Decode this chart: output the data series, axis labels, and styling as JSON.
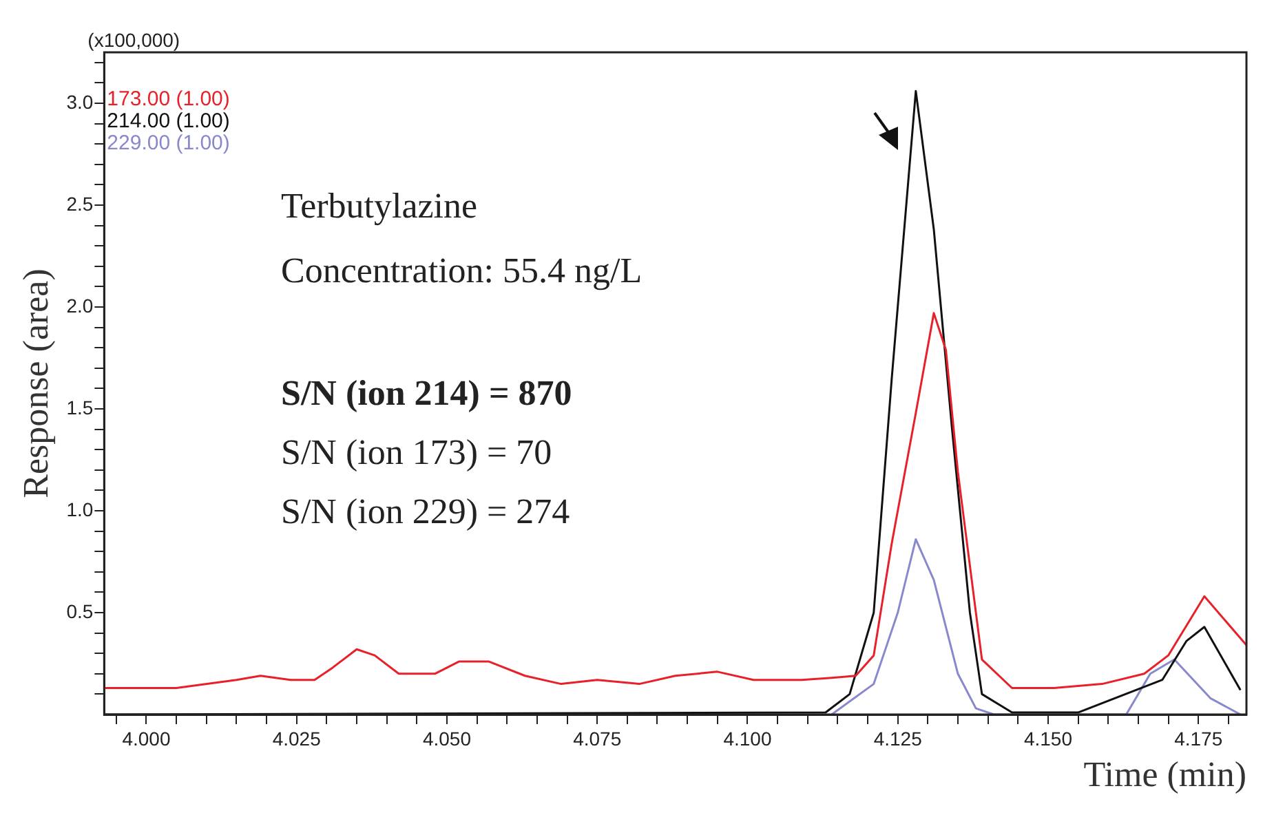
{
  "chart_data": {
    "type": "line",
    "xlabel": "Time (min)",
    "ylabel": "Response (area)",
    "annotations": [
      "(x100,000)",
      "Terbutylazine",
      "Concentration: 55.4 ng/L",
      "S/N (ion 214) = 870",
      "S/N (ion 173) = 70",
      "S/N (ion 229) = 274"
    ],
    "xlim": [
      3.993,
      4.183
    ],
    "ylim": [
      0,
      3.25
    ],
    "xticks": [
      {
        "value": 3.995,
        "label": null
      },
      {
        "value": 4,
        "label": "4.000"
      },
      {
        "value": 4.005,
        "label": null
      },
      {
        "value": 4.01,
        "label": null
      },
      {
        "value": 4.015,
        "label": null
      },
      {
        "value": 4.02,
        "label": null
      },
      {
        "value": 4.025,
        "label": "4.025"
      },
      {
        "value": 4.03,
        "label": null
      },
      {
        "value": 4.035,
        "label": null
      },
      {
        "value": 4.04,
        "label": null
      },
      {
        "value": 4.045,
        "label": null
      },
      {
        "value": 4.05,
        "label": "4.050"
      },
      {
        "value": 4.055,
        "label": null
      },
      {
        "value": 4.06,
        "label": null
      },
      {
        "value": 4.065,
        "label": null
      },
      {
        "value": 4.07,
        "label": null
      },
      {
        "value": 4.075,
        "label": "4.075"
      },
      {
        "value": 4.08,
        "label": null
      },
      {
        "value": 4.085,
        "label": null
      },
      {
        "value": 4.09,
        "label": null
      },
      {
        "value": 4.095,
        "label": null
      },
      {
        "value": 4.1,
        "label": "4.100"
      },
      {
        "value": 4.105,
        "label": null
      },
      {
        "value": 4.11,
        "label": null
      },
      {
        "value": 4.115,
        "label": null
      },
      {
        "value": 4.12,
        "label": null
      },
      {
        "value": 4.125,
        "label": "4.125"
      },
      {
        "value": 4.13,
        "label": null
      },
      {
        "value": 4.135,
        "label": null
      },
      {
        "value": 4.14,
        "label": null
      },
      {
        "value": 4.145,
        "label": null
      },
      {
        "value": 4.15,
        "label": "4.150"
      },
      {
        "value": 4.155,
        "label": null
      },
      {
        "value": 4.16,
        "label": null
      },
      {
        "value": 4.165,
        "label": null
      },
      {
        "value": 4.17,
        "label": null
      },
      {
        "value": 4.175,
        "label": "4.175"
      },
      {
        "value": 4.18,
        "label": null
      }
    ],
    "yticks": [
      {
        "value": 0.1,
        "label": null
      },
      {
        "value": 0.2,
        "label": null
      },
      {
        "value": 0.3,
        "label": null
      },
      {
        "value": 0.4,
        "label": null
      },
      {
        "value": 0.5,
        "label": "0.5"
      },
      {
        "value": 0.6,
        "label": null
      },
      {
        "value": 0.7,
        "label": null
      },
      {
        "value": 0.8,
        "label": null
      },
      {
        "value": 0.9,
        "label": null
      },
      {
        "value": 1,
        "label": "1.0"
      },
      {
        "value": 1.1,
        "label": null
      },
      {
        "value": 1.2,
        "label": null
      },
      {
        "value": 1.3,
        "label": null
      },
      {
        "value": 1.4,
        "label": null
      },
      {
        "value": 1.5,
        "label": "1.5"
      },
      {
        "value": 1.6,
        "label": null
      },
      {
        "value": 1.7,
        "label": null
      },
      {
        "value": 1.8,
        "label": null
      },
      {
        "value": 1.9,
        "label": null
      },
      {
        "value": 2,
        "label": "2.0"
      },
      {
        "value": 2.1,
        "label": null
      },
      {
        "value": 2.2,
        "label": null
      },
      {
        "value": 2.3,
        "label": null
      },
      {
        "value": 2.4,
        "label": null
      },
      {
        "value": 2.5,
        "label": "2.5"
      },
      {
        "value": 2.6,
        "label": null
      },
      {
        "value": 2.7,
        "label": null
      },
      {
        "value": 2.8,
        "label": null
      },
      {
        "value": 2.9,
        "label": null
      },
      {
        "value": 3,
        "label": "3.0"
      },
      {
        "value": 3.1,
        "label": null
      },
      {
        "value": 3.2,
        "label": null
      }
    ],
    "grid": false,
    "legend": "top left",
    "marker": "none",
    "line_style": "solid",
    "series": [
      {
        "name": "173.00 (1.00)",
        "color": "#e8202a",
        "x": [
          3.993,
          4.005,
          4.015,
          4.019,
          4.024,
          4.028,
          4.031,
          4.035,
          4.038,
          4.042,
          4.048,
          4.052,
          4.057,
          4.063,
          4.069,
          4.075,
          4.082,
          4.088,
          4.095,
          4.101,
          4.109,
          4.114,
          4.118,
          4.121,
          4.124,
          4.128,
          4.131,
          4.133,
          4.135,
          4.139,
          4.144,
          4.151,
          4.159,
          4.166,
          4.17,
          4.176,
          4.183
        ],
        "values": [
          0.13,
          0.13,
          0.17,
          0.19,
          0.17,
          0.17,
          0.23,
          0.32,
          0.29,
          0.2,
          0.2,
          0.26,
          0.26,
          0.19,
          0.15,
          0.17,
          0.15,
          0.19,
          0.21,
          0.17,
          0.17,
          0.18,
          0.19,
          0.29,
          0.84,
          1.48,
          1.97,
          1.79,
          1.19,
          0.27,
          0.13,
          0.13,
          0.15,
          0.2,
          0.29,
          0.58,
          0.34
        ]
      },
      {
        "name": "214.00 (1.00)",
        "color": "#111111",
        "x": [
          3.993,
          4.113,
          4.117,
          4.121,
          4.124,
          4.128,
          4.131,
          4.134,
          4.137,
          4.139,
          4.144,
          4.155,
          4.169,
          4.173,
          4.176,
          4.182
        ],
        "values": [
          0,
          0.01,
          0.1,
          0.5,
          1.65,
          3.06,
          2.38,
          1.41,
          0.5,
          0.1,
          0.01,
          0.01,
          0.17,
          0.36,
          0.43,
          0.12
        ]
      },
      {
        "name": "229.00 (1.00)",
        "color": "#8888cc",
        "x": [
          4.114,
          4.121,
          4.125,
          4.128,
          4.131,
          4.135,
          4.138,
          4.141,
          4.163,
          4.167,
          4.171,
          4.177,
          4.182
        ],
        "values": [
          0,
          0.15,
          0.5,
          0.86,
          0.66,
          0.2,
          0.03,
          0,
          0,
          0.2,
          0.27,
          0.08,
          0
        ]
      }
    ]
  }
}
